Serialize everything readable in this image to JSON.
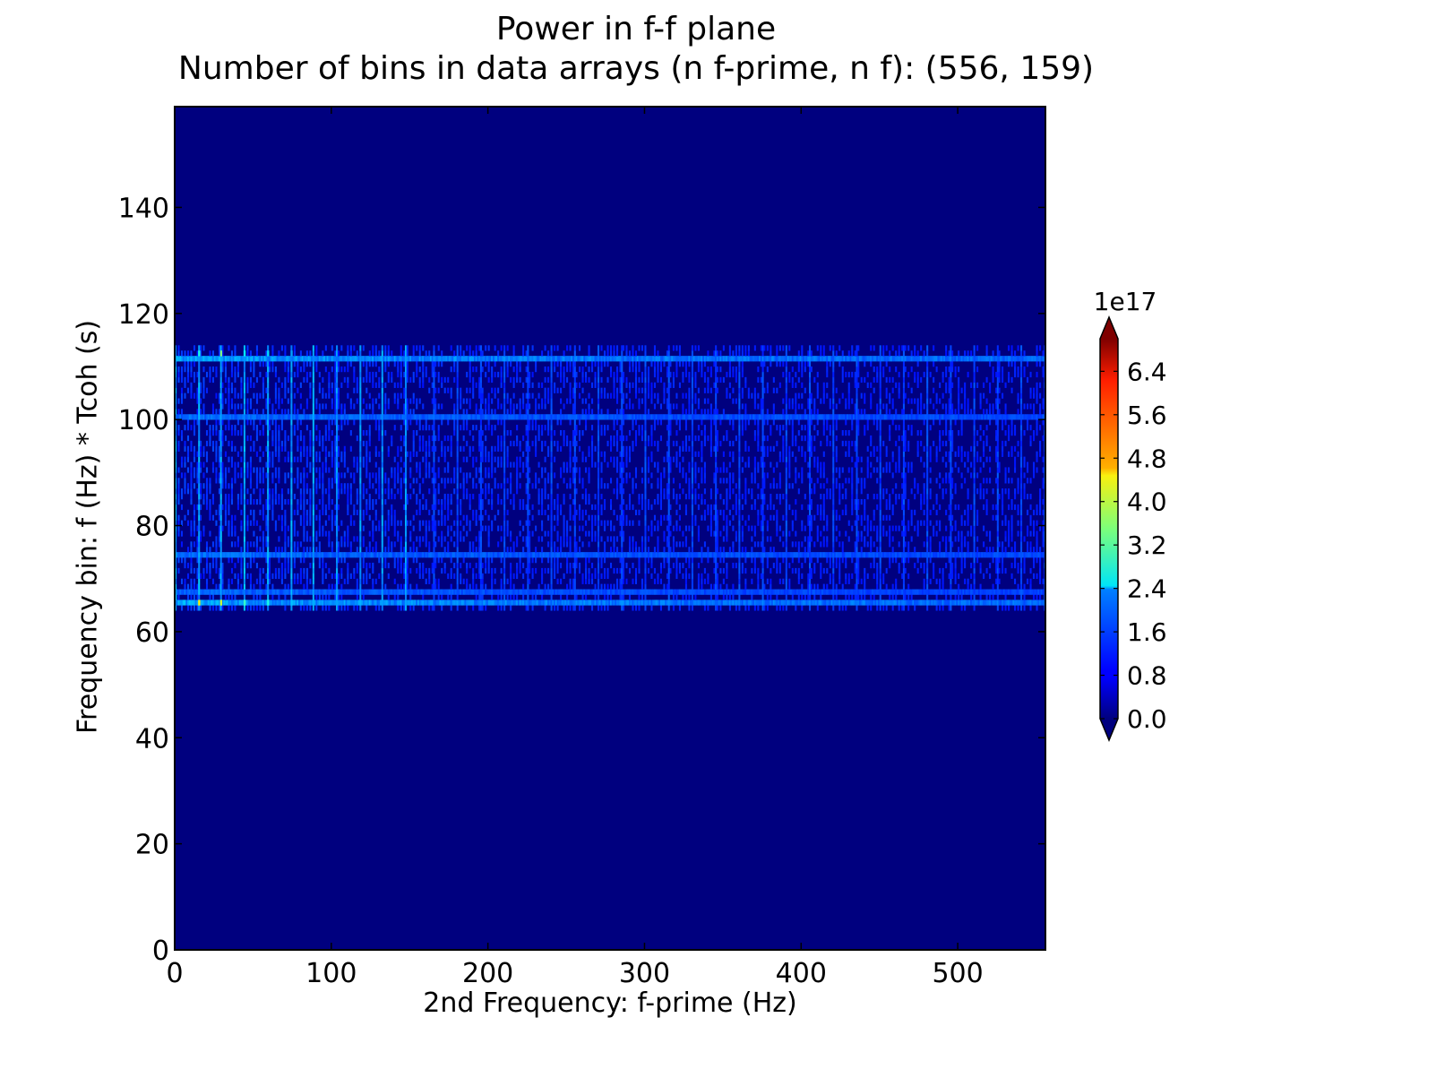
{
  "chart_data": {
    "type": "heatmap",
    "title": "Power in f-f plane",
    "subtitle": "Number of bins in data arrays (n f-prime, n f): (556, 159)",
    "xlabel": "2nd Frequency: f-prime (Hz)",
    "ylabel": "Frequency bin: f (Hz) * Tcoh (s)",
    "xlim": [
      0,
      556
    ],
    "ylim": [
      0,
      159
    ],
    "xticks": [
      0,
      100,
      200,
      300,
      400,
      500
    ],
    "xtick_labels": [
      "0",
      "100",
      "200",
      "300",
      "400",
      "500"
    ],
    "yticks": [
      0,
      20,
      40,
      60,
      80,
      100,
      120,
      140
    ],
    "ytick_labels": [
      "0",
      "20",
      "40",
      "60",
      "80",
      "100",
      "120",
      "140"
    ],
    "colormap": "jet",
    "background_color": "#00007f",
    "colorbar": {
      "multiplier_label": "1e17",
      "min": 0.0,
      "max": 7.0,
      "ticks": [
        0.0,
        0.8,
        1.6,
        2.4,
        3.2,
        4.0,
        4.8,
        5.6,
        6.4
      ],
      "tick_labels": [
        "0.0",
        "0.8",
        "1.6",
        "2.4",
        "3.2",
        "4.0",
        "4.8",
        "5.6",
        "6.4"
      ],
      "extend": "both"
    },
    "features": {
      "active_band_f": [
        64,
        113
      ],
      "active_band_fprime": [
        0,
        556
      ],
      "strong_rows": [
        {
          "f": 65,
          "level": 1.6
        },
        {
          "f": 67,
          "level": 1.0
        },
        {
          "f": 74,
          "level": 1.1
        },
        {
          "f": 100,
          "level": 1.1
        },
        {
          "f": 111,
          "level": 1.6
        }
      ],
      "strong_columns_fprime": [
        0,
        15,
        29,
        44,
        59,
        74,
        88,
        103,
        118,
        132,
        147
      ],
      "peak_points": [
        {
          "fprime": 15,
          "f": 65,
          "value": 4.5
        },
        {
          "fprime": 29,
          "f": 65,
          "value": 4.0
        },
        {
          "fprime": 29,
          "f": 112,
          "value": 3.5
        },
        {
          "fprime": 44,
          "f": 65,
          "value": 3.0
        },
        {
          "fprime": 59,
          "f": 65,
          "value": 2.8
        },
        {
          "fprime": 15,
          "f": 112,
          "value": 2.8
        },
        {
          "fprime": 44,
          "f": 112,
          "value": 2.6
        },
        {
          "fprime": 59,
          "f": 112,
          "value": 2.4
        },
        {
          "fprime": 74,
          "f": 65,
          "value": 2.2
        },
        {
          "fprime": 103,
          "f": 67,
          "value": 2.0
        },
        {
          "fprime": 74,
          "f": 112,
          "value": 2.0
        },
        {
          "fprime": 88,
          "f": 111,
          "value": 1.8
        },
        {
          "fprime": 0,
          "f": 111,
          "value": 2.0
        },
        {
          "fprime": 0,
          "f": 66,
          "value": 2.2
        }
      ]
    }
  }
}
